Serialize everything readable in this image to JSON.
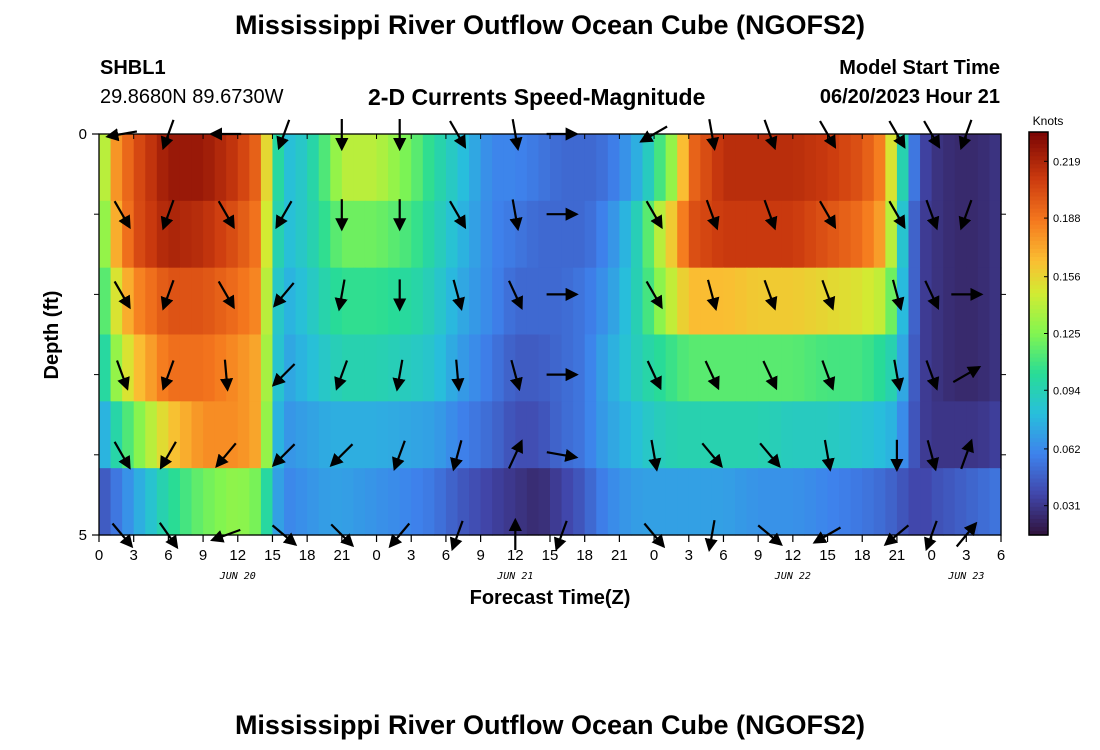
{
  "header": {
    "title": "Mississippi River Outflow Ocean Cube (NGOFS2)",
    "station": "SHBL1",
    "coordinates": "29.8680N  89.6730W",
    "subtitle": "2-D Currents Speed-Magnitude",
    "model_start_label": "Model Start Time",
    "model_start_value": "06/20/2023 Hour 21"
  },
  "second_panel": {
    "title": "Mississippi River Outflow Ocean Cube (NGOFS2)"
  },
  "chart_data": {
    "type": "heatmap",
    "xlabel": "Forecast Time(Z)",
    "ylabel": "Depth (ft)",
    "x_ticks": [
      "0",
      "3",
      "6",
      "9",
      "12",
      "15",
      "18",
      "21",
      "0",
      "3",
      "6",
      "9",
      "12",
      "15",
      "18",
      "21",
      "0",
      "3",
      "6",
      "9",
      "12",
      "15",
      "18",
      "21",
      "0",
      "3",
      "6"
    ],
    "x_range_hours": [
      0,
      78
    ],
    "date_labels": [
      {
        "label": "JUN 20",
        "hour": 12
      },
      {
        "label": "JUN 21",
        "hour": 36
      },
      {
        "label": "JUN 22",
        "hour": 60
      },
      {
        "label": "JUN 23",
        "hour": 75
      }
    ],
    "y_ticks": [
      "0",
      "5"
    ],
    "ylim": [
      0,
      5
    ],
    "y_inverted": true,
    "colorbar": {
      "unit": "Knots",
      "range": [
        0.015,
        0.235
      ],
      "tick_values": [
        0.219,
        0.188,
        0.156,
        0.125,
        0.094,
        0.062,
        0.031
      ],
      "tick_labels": [
        "0.219",
        "0.188",
        "0.156",
        "0.125",
        "0.094",
        "0.062",
        "0.031"
      ]
    },
    "depth_layers_ft": [
      0.5,
      1.5,
      2.5,
      3.5,
      4.5
    ],
    "speed_profile_hours": [
      0,
      1,
      3,
      6,
      9,
      12,
      14,
      15,
      16,
      18,
      20,
      21,
      24,
      27,
      29,
      31,
      34,
      36,
      38,
      40,
      42,
      43,
      45,
      47,
      48,
      50,
      51,
      54,
      57,
      60,
      63,
      66,
      68,
      69,
      70,
      71,
      72,
      74,
      76,
      78
    ],
    "speed_knots": [
      [
        0.11,
        0.17,
        0.2,
        0.225,
        0.225,
        0.21,
        0.19,
        0.12,
        0.08,
        0.09,
        0.12,
        0.14,
        0.14,
        0.12,
        0.1,
        0.085,
        0.06,
        0.06,
        0.055,
        0.05,
        0.05,
        0.05,
        0.06,
        0.08,
        0.1,
        0.14,
        0.19,
        0.215,
        0.215,
        0.215,
        0.21,
        0.2,
        0.18,
        0.12,
        0.07,
        0.04,
        0.03,
        0.025,
        0.025,
        0.03
      ],
      [
        0.1,
        0.16,
        0.2,
        0.22,
        0.215,
        0.2,
        0.185,
        0.11,
        0.08,
        0.09,
        0.11,
        0.12,
        0.12,
        0.11,
        0.095,
        0.08,
        0.06,
        0.055,
        0.05,
        0.05,
        0.05,
        0.055,
        0.07,
        0.1,
        0.13,
        0.17,
        0.2,
        0.21,
        0.21,
        0.21,
        0.2,
        0.19,
        0.17,
        0.11,
        0.06,
        0.035,
        0.03,
        0.025,
        0.025,
        0.03
      ],
      [
        0.09,
        0.14,
        0.18,
        0.2,
        0.2,
        0.19,
        0.18,
        0.1,
        0.075,
        0.085,
        0.1,
        0.105,
        0.105,
        0.1,
        0.09,
        0.075,
        0.06,
        0.05,
        0.05,
        0.05,
        0.055,
        0.06,
        0.075,
        0.1,
        0.12,
        0.15,
        0.165,
        0.165,
        0.16,
        0.16,
        0.155,
        0.15,
        0.14,
        0.1,
        0.06,
        0.035,
        0.03,
        0.025,
        0.025,
        0.03
      ],
      [
        0.08,
        0.12,
        0.16,
        0.19,
        0.19,
        0.18,
        0.17,
        0.1,
        0.07,
        0.08,
        0.09,
        0.095,
        0.095,
        0.09,
        0.085,
        0.07,
        0.055,
        0.045,
        0.045,
        0.05,
        0.055,
        0.065,
        0.08,
        0.095,
        0.1,
        0.11,
        0.115,
        0.115,
        0.115,
        0.115,
        0.11,
        0.11,
        0.1,
        0.09,
        0.055,
        0.035,
        0.03,
        0.025,
        0.025,
        0.03
      ],
      [
        0.065,
        0.09,
        0.12,
        0.16,
        0.18,
        0.18,
        0.17,
        0.09,
        0.065,
        0.07,
        0.075,
        0.075,
        0.075,
        0.072,
        0.07,
        0.06,
        0.05,
        0.04,
        0.04,
        0.05,
        0.055,
        0.065,
        0.075,
        0.085,
        0.09,
        0.095,
        0.095,
        0.095,
        0.095,
        0.09,
        0.09,
        0.085,
        0.08,
        0.075,
        0.05,
        0.035,
        0.03,
        0.03,
        0.03,
        0.035
      ],
      [
        0.04,
        0.05,
        0.07,
        0.1,
        0.12,
        0.13,
        0.12,
        0.08,
        0.06,
        0.065,
        0.07,
        0.07,
        0.065,
        0.06,
        0.055,
        0.045,
        0.035,
        0.03,
        0.025,
        0.035,
        0.045,
        0.055,
        0.065,
        0.07,
        0.07,
        0.07,
        0.07,
        0.07,
        0.065,
        0.065,
        0.06,
        0.055,
        0.05,
        0.045,
        0.04,
        0.035,
        0.04,
        0.045,
        0.05,
        0.055
      ]
    ],
    "vector_hours": [
      2,
      6,
      11,
      16,
      21,
      26,
      31,
      36,
      40,
      48,
      53,
      58,
      63,
      69,
      72,
      75
    ],
    "vector_depths_ft": [
      0,
      1,
      2,
      3,
      4,
      5
    ],
    "vector_directions_deg": [
      [
        260,
        200,
        270,
        200,
        180,
        180,
        150,
        170,
        90,
        240,
        170,
        160,
        150,
        150,
        150,
        200
      ],
      [
        150,
        200,
        150,
        210,
        180,
        180,
        150,
        170,
        90,
        150,
        160,
        160,
        150,
        150,
        160,
        200
      ],
      [
        150,
        200,
        150,
        220,
        190,
        180,
        165,
        155,
        90,
        150,
        165,
        160,
        160,
        165,
        155,
        90
      ],
      [
        160,
        200,
        175,
        225,
        200,
        190,
        175,
        165,
        90,
        155,
        155,
        155,
        160,
        170,
        160,
        60
      ],
      [
        150,
        210,
        220,
        225,
        225,
        200,
        195,
        25,
        100,
        170,
        140,
        140,
        170,
        180,
        165,
        20
      ],
      [
        140,
        145,
        250,
        130,
        135,
        220,
        200,
        0,
        200,
        140,
        190,
        130,
        240,
        230,
        200,
        40
      ]
    ]
  }
}
